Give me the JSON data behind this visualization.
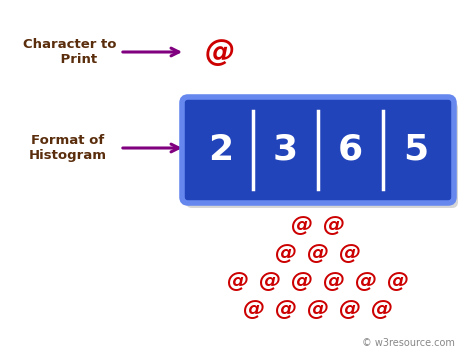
{
  "bg_color": "#ffffff",
  "label_color": "#5a2d0c",
  "arrow_color": "#800080",
  "char_color": "#cc0000",
  "box_bg_color": "#2244bb",
  "box_text_color": "#ffffff",
  "histogram_values": [
    2,
    3,
    6,
    5
  ],
  "char_symbol": "@",
  "label1": "Character to\n    Print",
  "label2": "Format of\nHistogram",
  "watermark": "© w3resource.com",
  "row_counts": [
    2,
    3,
    6,
    5
  ]
}
